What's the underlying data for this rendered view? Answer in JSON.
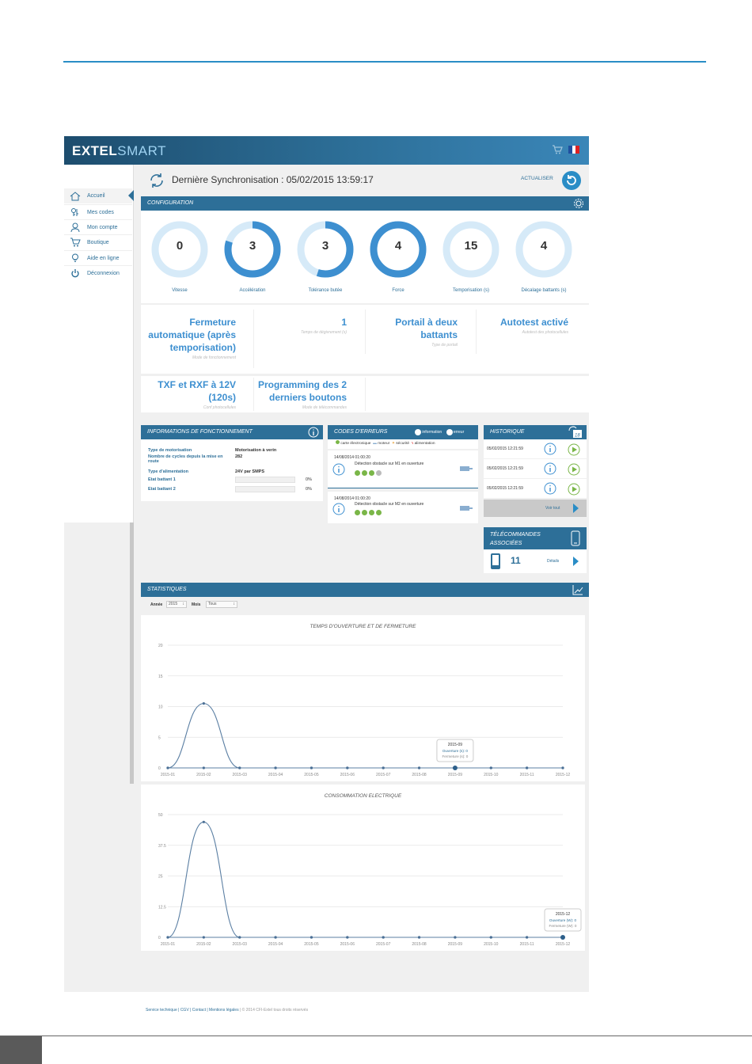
{
  "app": {
    "brand_bold": "EXTEL",
    "brand_light": "SMART",
    "colors": {
      "primary": "#2d6f98",
      "accent": "#3d8fd0",
      "gauge_track": "#d6eaf8",
      "green": "#7ab648"
    }
  },
  "sidebar": {
    "items": [
      {
        "label": "Accueil",
        "icon": "home-icon"
      },
      {
        "label": "Mes codes",
        "icon": "keys-icon"
      },
      {
        "label": "Mon compte",
        "icon": "user-icon"
      },
      {
        "label": "Boutique",
        "icon": "cart-icon"
      },
      {
        "label": "Aide en ligne",
        "icon": "lightbulb-icon"
      },
      {
        "label": "Déconnexion",
        "icon": "power-icon"
      }
    ]
  },
  "header": {
    "sync_title": "Dernière Synchronisation : 05/02/2015 13:59:17",
    "refresh_label": "ACTUALISER"
  },
  "configuration": {
    "title": "CONFIGURATION",
    "gauges": [
      {
        "label": "Vitesse",
        "value": "0",
        "fill": 0
      },
      {
        "label": "Accélération",
        "value": "3",
        "fill": 0.8
      },
      {
        "label": "Tolérance butée",
        "value": "3",
        "fill": 0.55
      },
      {
        "label": "Force",
        "value": "4",
        "fill": 1
      },
      {
        "label": "Temporisation (s)",
        "value": "15",
        "fill": 0
      },
      {
        "label": "Décalage battants (s)",
        "value": "4",
        "fill": 0
      }
    ],
    "tiles": [
      {
        "value": "Fermeture automatique (après temporisation)",
        "sub": "Mode de fonctionnement"
      },
      {
        "value": "1",
        "sub": "Temps de dégivrement (s)"
      },
      {
        "value": "Portail à deux battants",
        "sub": "Type de portail"
      },
      {
        "value": "Autotest activé",
        "sub": "Autotest des photocellules"
      },
      {
        "value": "TXF et RXF à 12V (120s)",
        "sub": "Conf photocellules"
      },
      {
        "value": "Programming des 2 derniers boutons",
        "sub": "Mode de télécommandes"
      }
    ]
  },
  "info": {
    "title": "INFORMATIONS DE FONCTIONNEMENT",
    "rows": [
      {
        "label": "Type de motorisation",
        "value": "Motorisation à verin"
      },
      {
        "label": "Nombre de cycles depuis la mise en route",
        "value": "282"
      },
      {
        "label": "Type d'alimentation",
        "value": "24V par SMPS"
      }
    ],
    "bars": [
      {
        "label": "Etat battant 1",
        "pct": "0%"
      },
      {
        "label": "Etat battant 2",
        "pct": "0%"
      }
    ]
  },
  "errors": {
    "title": "CODES D'ERREURS",
    "legend_info": "information",
    "legend_error": "erreur",
    "legend": [
      "carte électronique",
      "moteur",
      "sécurité",
      "alimentation"
    ],
    "items": [
      {
        "date": "14/08/2014 01:00:20",
        "text": "Détection obstacle sur M1 en ouverture"
      },
      {
        "date": "14/08/2014 01:00:20",
        "text": "Détection obstacle sur M2 en ouverture"
      }
    ]
  },
  "history": {
    "title": "HISTORIQUE",
    "rows": [
      "05/02/2015 12:21:59",
      "05/02/2015 12:21:59",
      "05/02/2015 12:21:59"
    ],
    "see_all": "Voir tout"
  },
  "remotes": {
    "title": "TÉLÉCOMMANDES ASSOCIÉES",
    "count": "11",
    "details": "Détails"
  },
  "stats": {
    "title": "STATISTIQUES",
    "year_label": "Année",
    "year_value": "2015",
    "month_label": "Mois",
    "month_value": "Tous"
  },
  "chart_data": [
    {
      "type": "line",
      "title": "TEMPS D'OUVERTURE ET DE FERMETURE",
      "x": [
        "2015-01",
        "2015-02",
        "2015-03",
        "2015-04",
        "2015-05",
        "2015-06",
        "2015-07",
        "2015-08",
        "2015-09",
        "2015-10",
        "2015-11",
        "2015-12"
      ],
      "series": [
        {
          "name": "Ouverture (s)",
          "values": [
            0,
            10.5,
            0,
            0,
            0,
            0,
            0,
            0,
            0,
            0,
            0,
            0
          ]
        },
        {
          "name": "Fermeture (s)",
          "values": [
            0,
            0,
            0,
            0,
            0,
            0,
            0,
            0,
            0,
            0,
            0,
            0
          ]
        }
      ],
      "yticks": [
        "0",
        "5",
        "10",
        "15",
        "20"
      ],
      "ylim": [
        0,
        20
      ],
      "grid": true,
      "tooltip": {
        "title": "2015-09",
        "lines": [
          "Ouverture (s): 0",
          "Fermeture (s): 0"
        ],
        "index": 8
      }
    },
    {
      "type": "line",
      "title": "CONSOMMATION ELECTRIQUE",
      "x": [
        "2015-01",
        "2015-02",
        "2015-03",
        "2015-04",
        "2015-05",
        "2015-06",
        "2015-07",
        "2015-08",
        "2015-09",
        "2015-10",
        "2015-11",
        "2015-12"
      ],
      "series": [
        {
          "name": "Ouverture (W)",
          "values": [
            0,
            47,
            0,
            0,
            0,
            0,
            0,
            0,
            0,
            0,
            0,
            0
          ]
        },
        {
          "name": "Fermeture (W)",
          "values": [
            0,
            0,
            0,
            0,
            0,
            0,
            0,
            0,
            0,
            0,
            0,
            0
          ]
        }
      ],
      "yticks": [
        "0",
        "12.5",
        "25",
        "37.5",
        "50"
      ],
      "ylim": [
        0,
        50
      ],
      "grid": true,
      "tooltip": {
        "title": "2015-12",
        "lines": [
          "Ouverture (W): 0",
          "Fermeture (W): 0"
        ],
        "index": 11
      }
    }
  ],
  "footer": {
    "links": "Service technique | CGV | Contact | Mentions légales",
    "copyright": " | © 2014 CFI-Extel tous droits réservés"
  }
}
